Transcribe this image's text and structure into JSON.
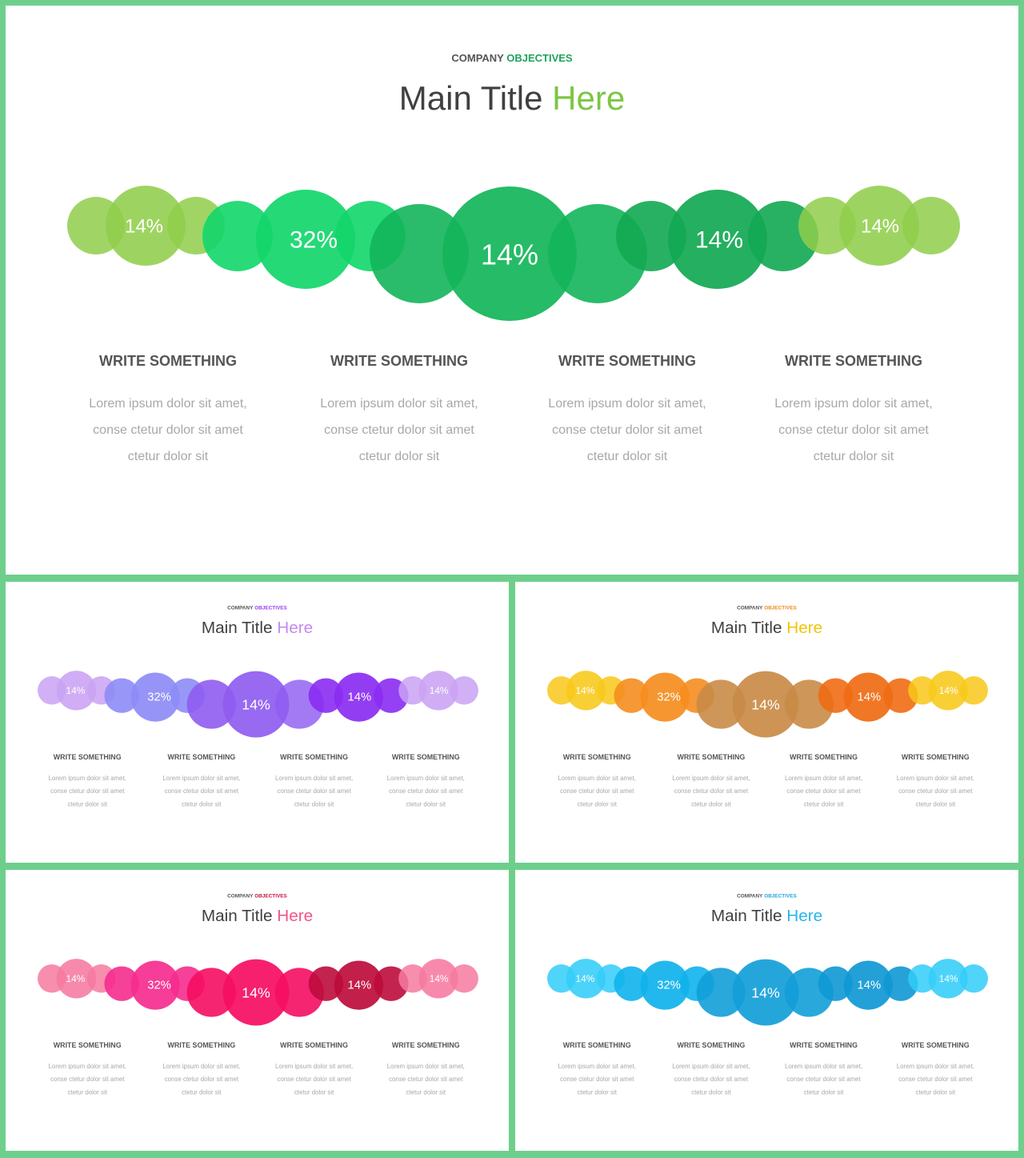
{
  "slides": [
    {
      "id": "green",
      "kicker_a": "COMPANY",
      "kicker_b": "OBJECTIVES",
      "title_a": "Main Title",
      "title_b": "Here",
      "kicker_color": "#1fa35a",
      "title_color": "#7cc644",
      "bubble_colors": [
        "#8fce4b",
        "#12d66a",
        "#13b55a",
        "#13b55a",
        "#12a852",
        "#8fce4b"
      ],
      "percentages": [
        "14%",
        "32%",
        "14%",
        "14%",
        "14%"
      ],
      "columns": [
        {
          "heading": "WRITE SOMETHING",
          "lines": [
            "Lorem ipsum dolor sit amet,",
            "conse ctetur dolor sit amet",
            "ctetur dolor sit"
          ]
        },
        {
          "heading": "WRITE SOMETHING",
          "lines": [
            "Lorem ipsum dolor sit amet,",
            "conse ctetur dolor sit amet",
            "ctetur dolor sit"
          ]
        },
        {
          "heading": "WRITE SOMETHING",
          "lines": [
            "Lorem ipsum dolor sit amet,",
            "conse ctetur dolor sit amet",
            "ctetur dolor sit"
          ]
        },
        {
          "heading": "WRITE SOMETHING",
          "lines": [
            "Lorem ipsum dolor sit amet,",
            "conse ctetur dolor sit amet",
            "ctetur dolor sit"
          ]
        }
      ]
    },
    {
      "id": "purple",
      "kicker_a": "COMPANY",
      "kicker_b": "OBJECTIVES",
      "title_a": "Main Title",
      "title_b": "Here",
      "kicker_color": "#9b3ff0",
      "title_color": "#c58af0",
      "bubble_colors": [
        "#c9a2f3",
        "#8d8cf6",
        "#8f5cf0",
        "#9a6cf3",
        "#8a2cf2",
        "#c9a2f3"
      ],
      "percentages": [
        "14%",
        "32%",
        "14%",
        "14%",
        "14%"
      ],
      "columns": [
        {
          "heading": "WRITE SOMETHING",
          "lines": [
            "Lorem ipsum dolor sit amet,",
            "conse ctetur dolor sit amet",
            "ctetur dolor sit"
          ]
        },
        {
          "heading": "WRITE SOMETHING",
          "lines": [
            "Lorem ipsum dolor sit amet,",
            "conse ctetur dolor sit amet",
            "ctetur dolor sit"
          ]
        },
        {
          "heading": "WRITE SOMETHING",
          "lines": [
            "Lorem ipsum dolor sit amet,",
            "conse ctetur dolor sit amet",
            "ctetur dolor sit"
          ]
        },
        {
          "heading": "WRITE SOMETHING",
          "lines": [
            "Lorem ipsum dolor sit amet,",
            "conse ctetur dolor sit amet",
            "ctetur dolor sit"
          ]
        }
      ]
    },
    {
      "id": "orange",
      "kicker_a": "COMPANY",
      "kicker_b": "OBJECTIVES",
      "title_a": "Main Title",
      "title_b": "Here",
      "kicker_color": "#f08a1c",
      "title_color": "#f2c40c",
      "bubble_colors": [
        "#f8c81a",
        "#f58d1f",
        "#c98b47",
        "#c98b47",
        "#ef6b14",
        "#f8c81a"
      ],
      "percentages": [
        "14%",
        "32%",
        "14%",
        "14%",
        "14%"
      ],
      "columns": [
        {
          "heading": "WRITE SOMETHING",
          "lines": [
            "Lorem ipsum dolor sit amet,",
            "conse ctetur dolor sit amet",
            "ctetur dolor sit"
          ]
        },
        {
          "heading": "WRITE SOMETHING",
          "lines": [
            "Lorem ipsum dolor sit amet,",
            "conse ctetur dolor sit amet",
            "ctetur dolor sit"
          ]
        },
        {
          "heading": "WRITE SOMETHING",
          "lines": [
            "Lorem ipsum dolor sit amet,",
            "conse ctetur dolor sit amet",
            "ctetur dolor sit"
          ]
        },
        {
          "heading": "WRITE SOMETHING",
          "lines": [
            "Lorem ipsum dolor sit amet,",
            "conse ctetur dolor sit amet",
            "ctetur dolor sit"
          ]
        }
      ]
    },
    {
      "id": "pink",
      "kicker_a": "COMPANY",
      "kicker_b": "OBJECTIVES",
      "title_a": "Main Title",
      "title_b": "Here",
      "kicker_color": "#c8143f",
      "title_color": "#f2558a",
      "bubble_colors": [
        "#f67aa0",
        "#f52c8e",
        "#f50d62",
        "#f50d62",
        "#bd0c3c",
        "#f67aa0"
      ],
      "percentages": [
        "14%",
        "32%",
        "14%",
        "14%",
        "14%"
      ],
      "columns": [
        {
          "heading": "WRITE SOMETHING",
          "lines": [
            "Lorem ipsum dolor sit amet,",
            "conse ctetur dolor sit amet",
            "ctetur dolor sit"
          ]
        },
        {
          "heading": "WRITE SOMETHING",
          "lines": [
            "Lorem ipsum dolor sit amet,",
            "conse ctetur dolor sit amet",
            "ctetur dolor sit"
          ]
        },
        {
          "heading": "WRITE SOMETHING",
          "lines": [
            "Lorem ipsum dolor sit amet,",
            "conse ctetur dolor sit amet",
            "ctetur dolor sit"
          ]
        },
        {
          "heading": "WRITE SOMETHING",
          "lines": [
            "Lorem ipsum dolor sit amet,",
            "conse ctetur dolor sit amet",
            "ctetur dolor sit"
          ]
        }
      ]
    },
    {
      "id": "blue",
      "kicker_a": "COMPANY",
      "kicker_b": "OBJECTIVES",
      "title_a": "Main Title",
      "title_b": "Here",
      "kicker_color": "#1ea8e0",
      "title_color": "#28b4ea",
      "bubble_colors": [
        "#33cdf8",
        "#10b2ec",
        "#129ed8",
        "#129ed8",
        "#0f98d4",
        "#33cdf8"
      ],
      "percentages": [
        "14%",
        "32%",
        "14%",
        "14%",
        "14%"
      ],
      "columns": [
        {
          "heading": "WRITE SOMETHING",
          "lines": [
            "Lorem ipsum dolor sit amet,",
            "conse ctetur dolor sit amet",
            "ctetur dolor sit"
          ]
        },
        {
          "heading": "WRITE SOMETHING",
          "lines": [
            "Lorem ipsum dolor sit amet,",
            "conse ctetur dolor sit amet",
            "ctetur dolor sit"
          ]
        },
        {
          "heading": "WRITE SOMETHING",
          "lines": [
            "Lorem ipsum dolor sit amet,",
            "conse ctetur dolor sit amet",
            "ctetur dolor sit"
          ]
        },
        {
          "heading": "WRITE SOMETHING",
          "lines": [
            "Lorem ipsum dolor sit amet,",
            "conse ctetur dolor sit amet",
            "ctetur dolor sit"
          ]
        }
      ]
    }
  ]
}
